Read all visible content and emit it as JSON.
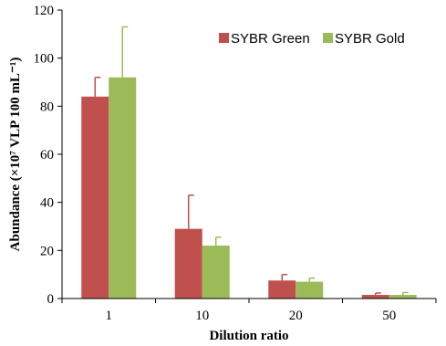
{
  "chart_data": {
    "type": "bar",
    "categories": [
      "1",
      "10",
      "20",
      "50"
    ],
    "series": [
      {
        "name": "SYBR Green",
        "color": "#c0504d",
        "values": [
          84,
          29,
          7.5,
          1.5
        ],
        "errors": [
          8,
          14,
          2.5,
          0.8
        ]
      },
      {
        "name": "SYBR Gold",
        "color": "#9bbb59",
        "values": [
          92,
          22,
          7,
          1.5
        ],
        "errors": [
          21,
          3.5,
          1.5,
          1
        ]
      }
    ],
    "xlabel": "Dilution ratio",
    "ylabel": "Abundance (×10⁷ VLP 100 mL⁻¹)",
    "ylim": [
      0,
      120
    ],
    "yticks": [
      0,
      20,
      40,
      60,
      80,
      100,
      120
    ],
    "legend_position": "top-right",
    "grid": false
  }
}
